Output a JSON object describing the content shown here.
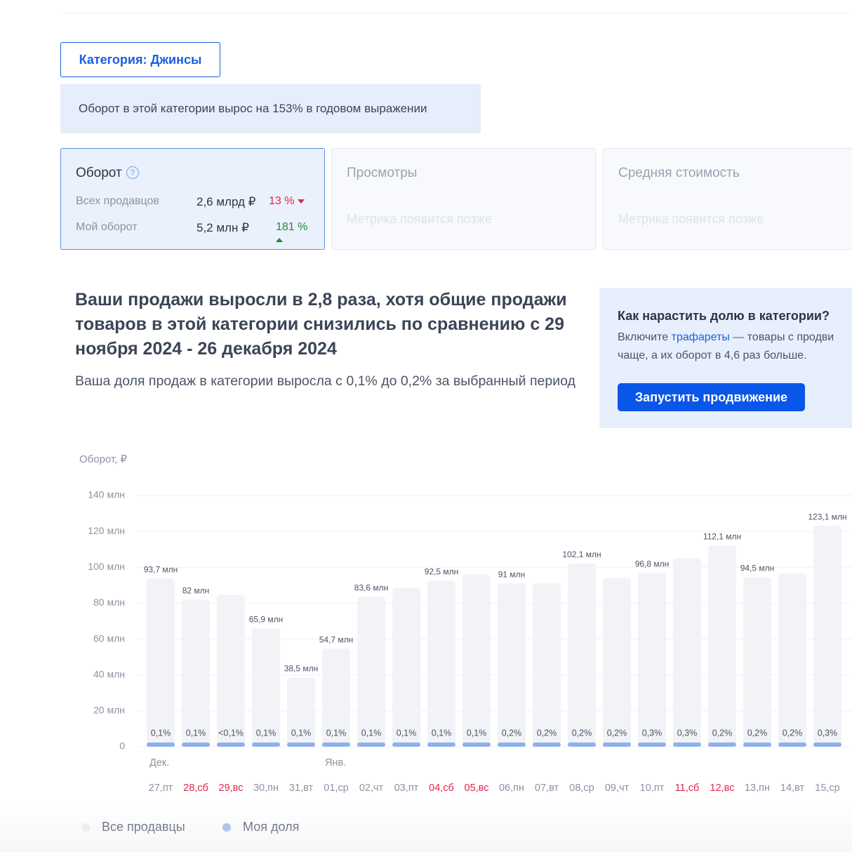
{
  "category_button": "Категория: Джинсы",
  "banner": "Оборот в этой категории вырос на 153% в годовом выражении",
  "cards": {
    "turnover": {
      "title": "Оборот",
      "help": "?",
      "rows": [
        {
          "label": "Всех продавцов",
          "value": "2,6 млрд ₽",
          "change": "13 %",
          "direction": "down"
        },
        {
          "label": "Мой оборот",
          "value": "5,2 млн ₽",
          "change": "181 %",
          "direction": "up"
        }
      ]
    },
    "views": {
      "title": "Просмотры",
      "note": "Метрика появится позже"
    },
    "avg_price": {
      "title": "Средняя стоимость",
      "note": "Метрика появится позже"
    }
  },
  "headline": "Ваши продажи выросли в 2,8 раза, хотя общие продажи товаров в этой категории снизились по сравнению с 29 ноября 2024 - 26 декабря 2024",
  "subheadline": "Ваша доля продаж в категории выросла с 0,1% до 0,2% за выбранный период",
  "promo": {
    "title": "Как нарастить долю в категории?",
    "line1_before": "Включите ",
    "line1_link": "трафареты",
    "line1_after": " — товары с продви",
    "line2": "чаще, а их оборот в 4,6 раз больше.",
    "button": "Запустить продвижение"
  },
  "chart_data": {
    "type": "bar",
    "y_axis_label": "Оборот, ₽",
    "categories": [
      "27,пт",
      "28,сб",
      "29,вс",
      "30,пн",
      "31,вт",
      "01,ср",
      "02,чт",
      "03,пт",
      "04,сб",
      "05,вс",
      "06,пн",
      "07,вт",
      "08,ср",
      "09,чт",
      "10,пт",
      "11,сб",
      "12,вс",
      "13,пн",
      "14,вт",
      "15,ср"
    ],
    "highlight_categories": [
      1,
      2,
      8,
      9,
      15,
      16
    ],
    "highlight_color": "#e0264f",
    "month_labels": [
      {
        "index": 0,
        "label": "Дек."
      },
      {
        "index": 5,
        "label": "Янв."
      }
    ],
    "series": [
      {
        "name": "Все продавцы",
        "color": "#f1f3f7",
        "values": [
          93.7,
          82,
          84.5,
          65.9,
          38.5,
          54.7,
          83.6,
          88.5,
          92.5,
          96,
          91,
          91,
          102.1,
          94,
          96.8,
          105,
          112.1,
          94.5,
          96.5,
          123.1
        ],
        "value_labels": [
          "93,7 млн",
          "82 млн",
          null,
          "65,9 млн",
          "38,5 млн",
          "54,7 млн",
          "83,6 млн",
          null,
          "92,5 млн",
          null,
          "91 млн",
          null,
          "102,1 млн",
          null,
          "96,8 млн",
          null,
          "112,1 млн",
          "94,5 млн",
          null,
          "123,1 млн"
        ]
      },
      {
        "name": "Моя доля",
        "color": "#8fb0ec",
        "labels": [
          "0,1%",
          "0,1%",
          "<0,1%",
          "0,1%",
          "0,1%",
          "0,1%",
          "0,1%",
          "0,1%",
          "0,1%",
          "0,1%",
          "0,2%",
          "0,2%",
          "0,2%",
          "0,2%",
          "0,3%",
          "0,3%",
          "0,2%",
          "0,2%",
          "0,2%",
          "0,3%"
        ]
      }
    ],
    "ylim": [
      0,
      140
    ],
    "yticks": [
      0,
      {
        "value": 20,
        "label": "20 млн"
      },
      {
        "value": 40,
        "label": "40 млн"
      },
      {
        "value": 60,
        "label": "60 млн"
      },
      {
        "value": 80,
        "label": "80 млн"
      },
      {
        "value": 100,
        "label": "100 млн"
      },
      {
        "value": 120,
        "label": "120 млн"
      },
      {
        "value": 140,
        "label": "140 млн"
      }
    ],
    "grid": true
  }
}
